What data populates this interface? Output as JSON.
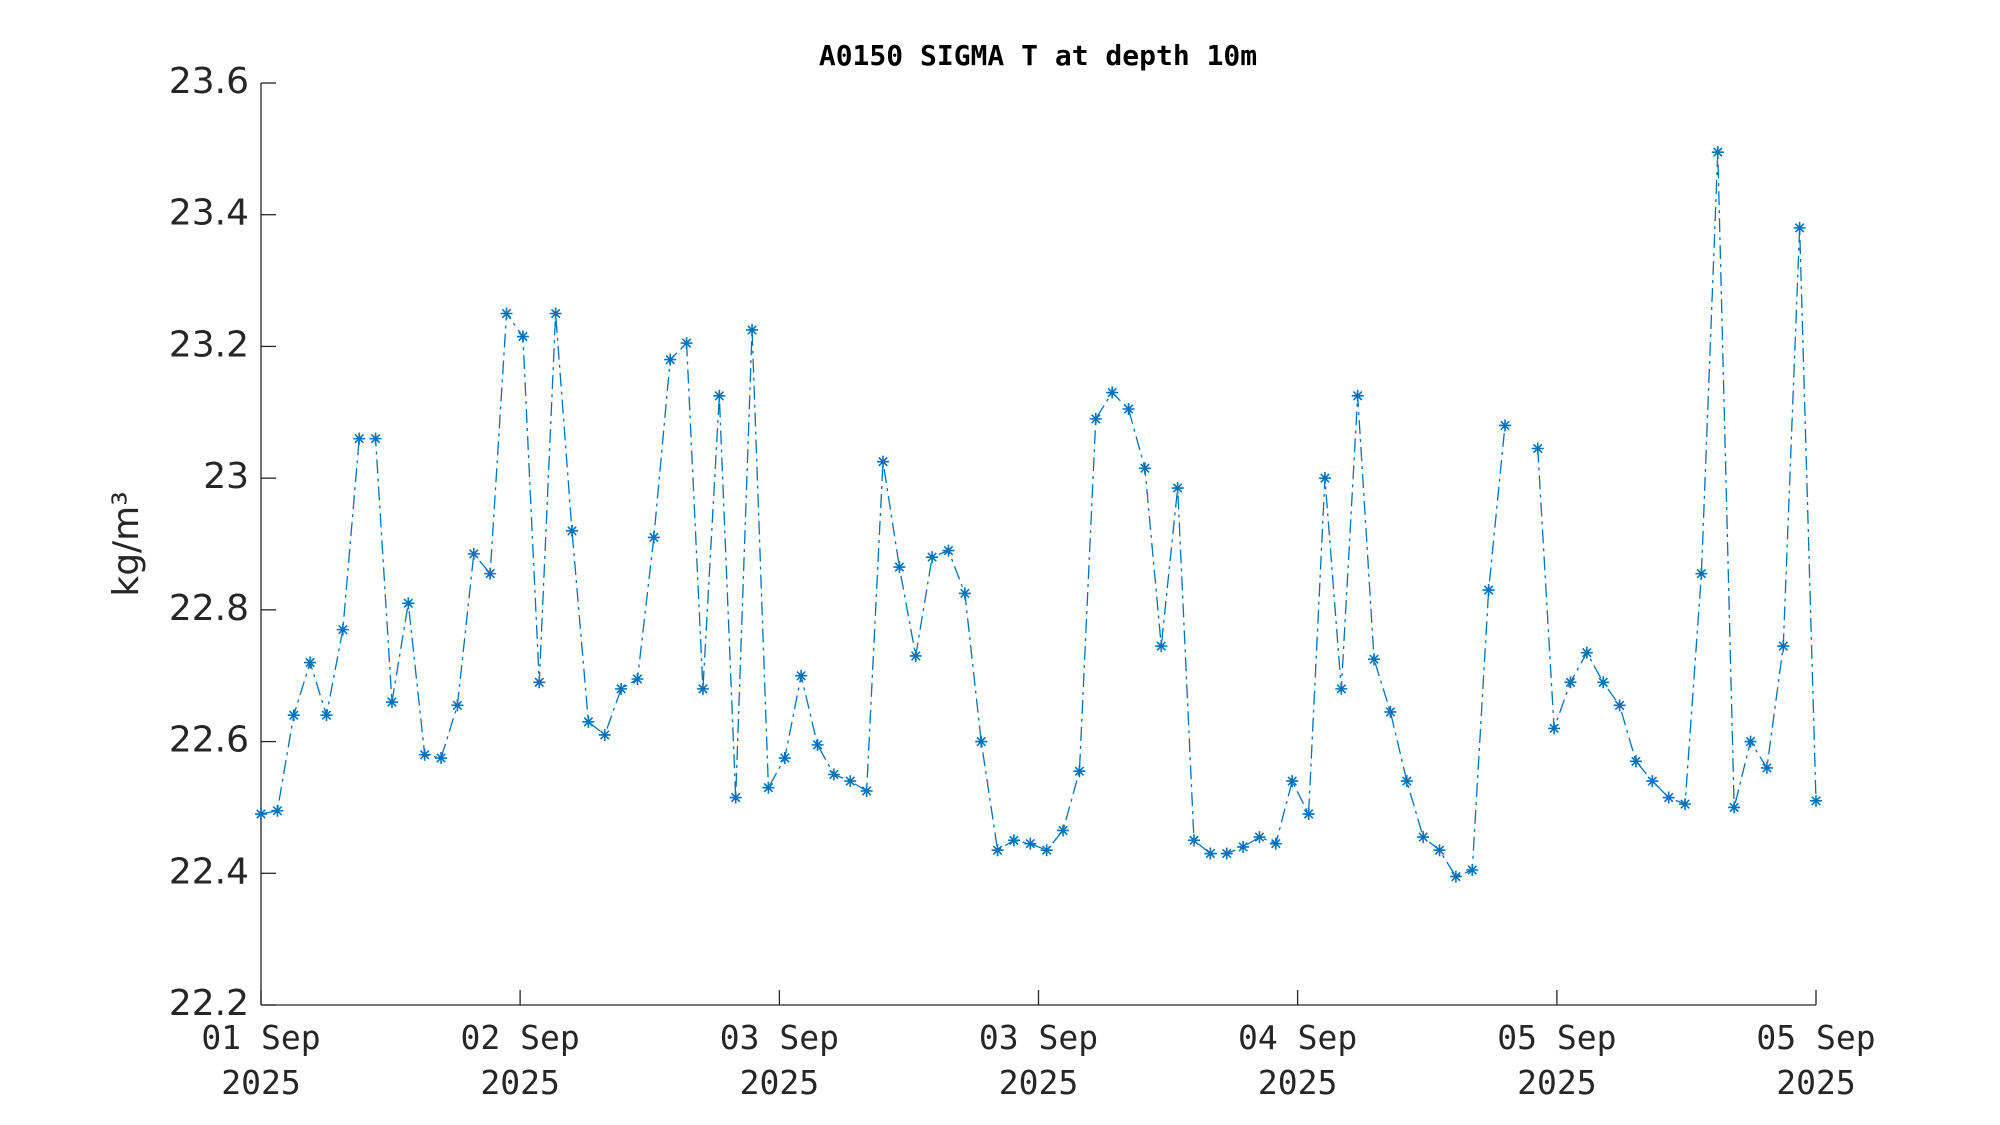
{
  "chart_data": {
    "type": "line",
    "title": "A0150 SIGMA T at depth 10m",
    "ylabel": "kg/m³",
    "color": "#0072bd",
    "marker": "asterisk",
    "linestyle": "dashdot",
    "x": [
      0,
      1,
      2,
      3,
      4,
      5,
      6,
      7,
      8,
      9,
      10,
      11,
      12,
      13,
      14,
      15,
      16,
      17,
      18,
      19,
      20,
      21,
      22,
      23,
      24,
      25,
      26,
      27,
      28,
      29,
      30,
      31,
      32,
      33,
      34,
      35,
      36,
      37,
      38,
      39,
      40,
      41,
      42,
      43,
      44,
      45,
      46,
      47,
      48,
      49,
      50,
      51,
      52,
      53,
      54,
      55,
      56,
      57,
      58,
      59,
      60,
      61,
      62,
      63,
      64,
      65,
      66,
      67,
      68,
      69,
      70,
      71,
      72,
      73,
      74,
      75,
      76,
      77,
      78,
      79,
      80,
      81,
      82,
      83,
      84,
      85,
      86,
      87,
      88,
      89,
      90,
      91,
      92,
      93,
      94,
      95
    ],
    "values": [
      22.49,
      22.495,
      22.64,
      22.72,
      22.64,
      22.77,
      23.06,
      23.06,
      22.66,
      22.81,
      22.58,
      22.575,
      22.655,
      22.885,
      22.855,
      23.25,
      23.215,
      22.69,
      23.25,
      22.92,
      22.63,
      22.61,
      22.68,
      22.695,
      22.91,
      23.18,
      23.205,
      22.68,
      23.125,
      22.515,
      23.225,
      22.53,
      22.575,
      22.7,
      22.595,
      22.55,
      22.54,
      22.525,
      23.025,
      22.865,
      22.73,
      22.88,
      22.89,
      22.825,
      22.6,
      22.435,
      22.45,
      22.445,
      22.435,
      22.465,
      22.555,
      23.09,
      23.13,
      23.105,
      23.015,
      22.745,
      22.985,
      22.45,
      22.43,
      22.43,
      22.44,
      22.455,
      22.445,
      22.54,
      22.49,
      23.0,
      22.68,
      23.125,
      22.725,
      22.645,
      22.54,
      22.455,
      22.435,
      22.395,
      22.405,
      22.83,
      23.08,
      null,
      23.045,
      22.62,
      22.69,
      22.735,
      22.69,
      22.655,
      22.57,
      22.54,
      22.515,
      22.505,
      22.855,
      23.495,
      22.5,
      22.6,
      22.56,
      22.745,
      23.38,
      22.51
    ],
    "xlim": [
      0,
      95
    ],
    "xticks": [
      {
        "value": 0,
        "label": "01 Sep\n2025"
      },
      {
        "value": 15.83,
        "label": "02 Sep\n2025"
      },
      {
        "value": 31.67,
        "label": "03 Sep\n2025"
      },
      {
        "value": 47.5,
        "label": "03 Sep\n2025"
      },
      {
        "value": 63.33,
        "label": "04 Sep\n2025"
      },
      {
        "value": 79.17,
        "label": "05 Sep\n2025"
      },
      {
        "value": 95,
        "label": "05 Sep\n2025"
      }
    ],
    "ylim": [
      22.2,
      23.6
    ],
    "yticks": [
      22.2,
      22.4,
      22.6,
      22.8,
      23,
      23.2,
      23.4,
      23.6
    ],
    "grid": false
  }
}
